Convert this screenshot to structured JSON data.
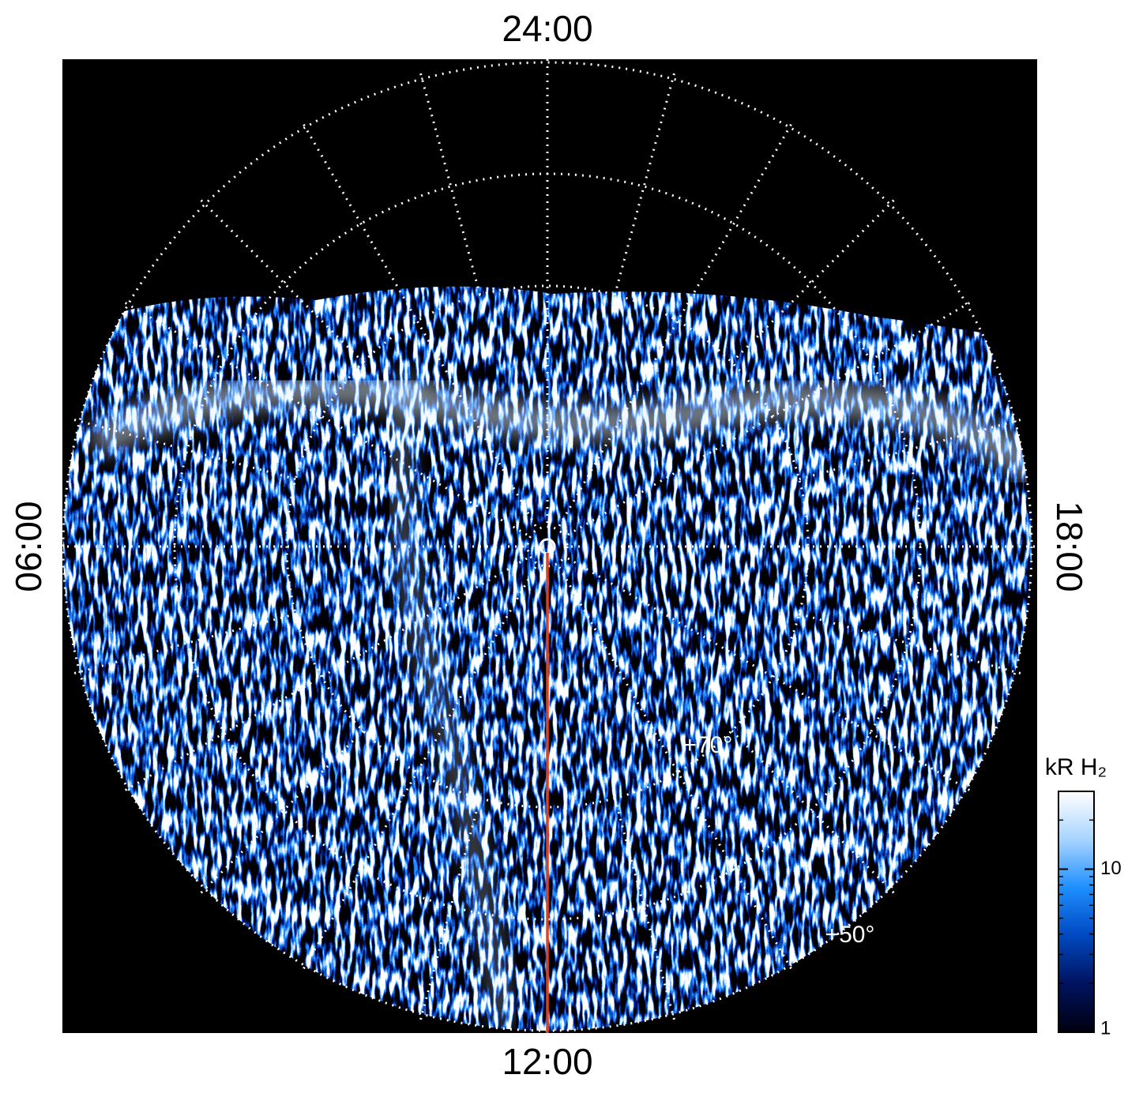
{
  "chart_data": {
    "type": "polar-image",
    "local_time_labels": {
      "top": "24:00",
      "left": "06:00",
      "right": "18:00",
      "bottom": "12:00"
    },
    "latitude_labels": [
      "+70°",
      "+50°"
    ],
    "colorbar": {
      "label": "kR H₂",
      "scale": "log",
      "lim": [
        1,
        30
      ],
      "ticks": [
        1,
        10
      ],
      "colors": [
        "#000010",
        "#00125e",
        "#0048c0",
        "#1e8fff",
        "#a8d4ff",
        "#ffffff"
      ]
    },
    "meridian_color": "#e0401a"
  }
}
